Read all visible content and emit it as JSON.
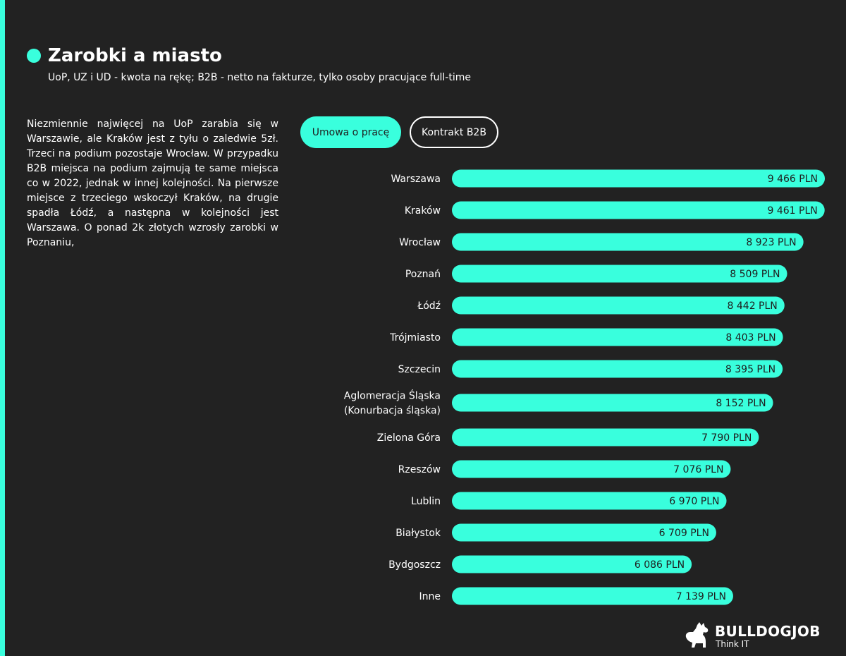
{
  "header": {
    "title": "Zarobki a miasto",
    "subtitle": "UoP, UZ i UD - kwota na rękę; B2B - netto na fakturze, tylko osoby pracujące full-time"
  },
  "description": "Niezmiennie najwięcej na UoP zarabia się w Warszawie, ale Kraków jest z tyłu o zaledwie 5zł. Trzeci na podium pozostaje Wrocław. W przypadku B2B miejsca na podium zajmują te same miejsca co w 2022, jednak w innej kolejności. Na pierwsze miejsce z trzeciego wskoczył Kraków, na drugie spadła Łódź, a następna w kolejności jest Warszawa. O ponad 2k złotych wzrosły zarobki w Poznaniu,",
  "tabs": [
    {
      "label": "Umowa o pracę",
      "active": true
    },
    {
      "label": "Kontrakt B2B",
      "active": false
    }
  ],
  "colors": {
    "accent": "#39ffdd",
    "background": "#222222",
    "text": "#ffffff",
    "bar_label": "#1e1e1e"
  },
  "chart_data": {
    "type": "bar",
    "orientation": "horizontal",
    "categories": [
      [
        "Warszawa"
      ],
      [
        "Kraków"
      ],
      [
        "Wrocław"
      ],
      [
        "Poznań"
      ],
      [
        "Łódź"
      ],
      [
        "Trójmiasto"
      ],
      [
        "Szczecin"
      ],
      [
        "Aglomeracja Śląska",
        "(Konurbacja śląska)"
      ],
      [
        "Zielona Góra"
      ],
      [
        "Rzeszów"
      ],
      [
        "Lublin"
      ],
      [
        "Białystok"
      ],
      [
        "Bydgoszcz"
      ],
      [
        "Inne"
      ]
    ],
    "values": [
      9466,
      9461,
      8923,
      8509,
      8442,
      8403,
      8395,
      8152,
      7790,
      7076,
      6970,
      6709,
      6086,
      7139
    ],
    "value_labels": [
      "9 466 PLN",
      "9 461 PLN",
      "8 923 PLN",
      "8 509 PLN",
      "8 442 PLN",
      "8 403 PLN",
      "8 395 PLN",
      "8 152 PLN",
      "7 790 PLN",
      "7 076 PLN",
      "6 970 PLN",
      "6 709 PLN",
      "6 086 PLN",
      "7 139 PLN"
    ],
    "xlim": [
      0,
      9466
    ],
    "grid": false
  },
  "logo": {
    "name": "BULLDOGJOB",
    "tagline": "Think IT",
    "icon": "bulldog-icon"
  }
}
